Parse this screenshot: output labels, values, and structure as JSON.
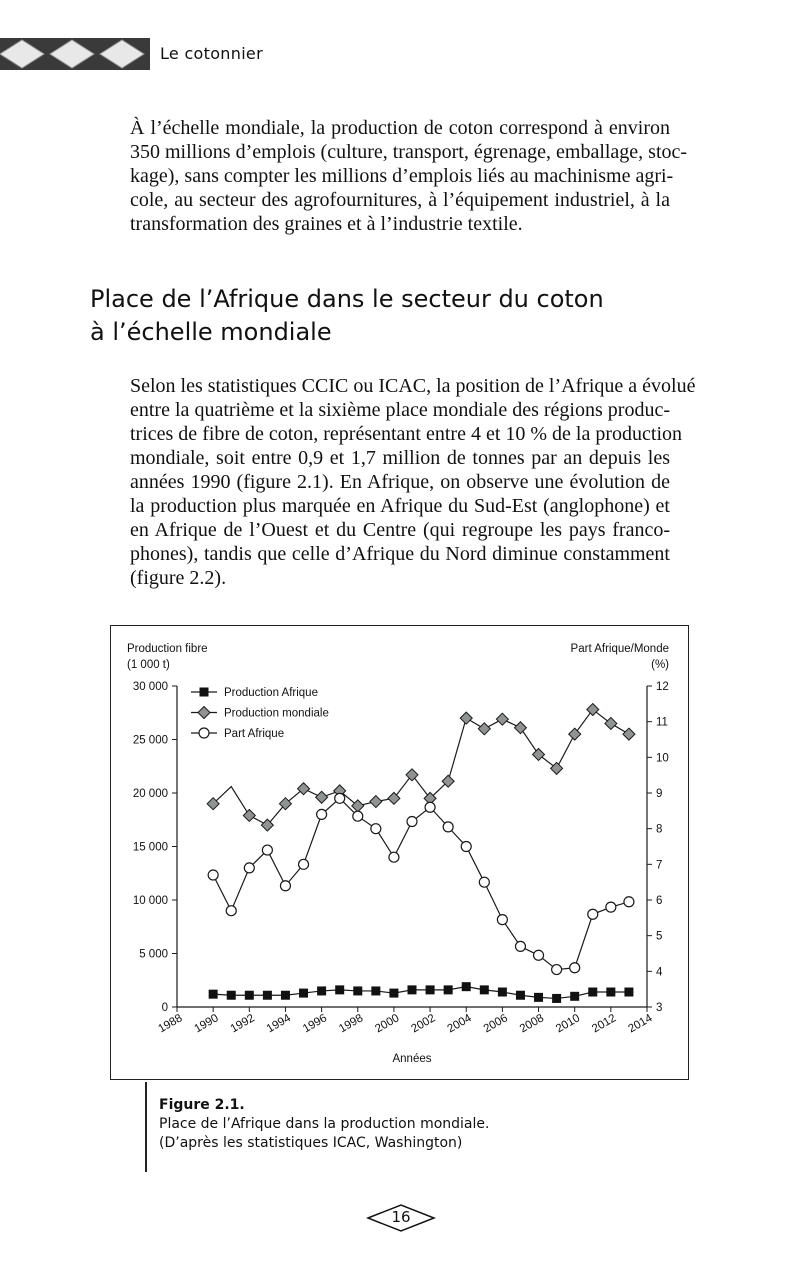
{
  "header": {
    "running_title": "Le cotonnier"
  },
  "paragraph1": [
    "À l’échelle mondiale, la production de coton correspond à environ",
    "350 millions d’emplois (culture, transport, égrenage, emballage, stoc-",
    "kage), sans compter les millions d’emplois liés au machinisme agri-",
    "cole, au secteur des agrofournitures, à l’équipement industriel, à la",
    "transformation des graines et à l’industrie textile."
  ],
  "section_heading": [
    "Place de l’Afrique dans le secteur du coton",
    "à l’échelle mondiale"
  ],
  "paragraph2": [
    "Selon les statistiques CCIC ou ICAC, la position de l’Afrique a évolué",
    "entre la quatrième et la sixième place mondiale des régions produc-",
    "trices de fibre de coton, représentant entre 4 et 10 % de la production",
    "mondiale, soit entre 0,9 et 1,7 million de tonnes par an depuis les",
    "années 1990 (figure 2.1). En Afrique, on observe une évolution de",
    "la production plus marquée en Afrique du Sud-Est (anglophone) et",
    "en Afrique de l’Ouest et du Centre (qui regroupe les pays franco-",
    "phones), tandis que celle d’Afrique du Nord diminue constamment",
    "(figure 2.2)."
  ],
  "chart_data": {
    "type": "line",
    "xlabel": "Années",
    "ylabel_left": [
      "Production fibre",
      "(1 000 t)"
    ],
    "ylabel_right": [
      "Part Afrique/Monde",
      "(%)"
    ],
    "x_ticks": [
      "1988",
      "1990",
      "1992",
      "1994",
      "1996",
      "1998",
      "2000",
      "2002",
      "2004",
      "2006",
      "2008",
      "2010",
      "2012",
      "2014"
    ],
    "xlim": [
      1988,
      2014
    ],
    "y_left_ticks": [
      "0",
      "5 000",
      "10 000",
      "15 000",
      "20 000",
      "25 000",
      "30 000"
    ],
    "ylim_left": [
      0,
      30000
    ],
    "y_right_ticks": [
      "3",
      "4",
      "5",
      "6",
      "7",
      "8",
      "9",
      "10",
      "11",
      "12"
    ],
    "ylim_right": [
      3,
      12
    ],
    "grid": false,
    "legend_placement": "top-left",
    "x": [
      1990,
      1991,
      1992,
      1993,
      1994,
      1995,
      1996,
      1997,
      1998,
      1999,
      2000,
      2001,
      2002,
      2003,
      2004,
      2005,
      2006,
      2007,
      2008,
      2009,
      2010,
      2011,
      2012,
      2013
    ],
    "series": [
      {
        "name": "Production Afrique",
        "axis": "left",
        "marker": "filled-square",
        "values": [
          1200,
          1100,
          1100,
          1100,
          1100,
          1300,
          1500,
          1600,
          1500,
          1500,
          1300,
          1600,
          1600,
          1600,
          1900,
          1600,
          1400,
          1100,
          900,
          800,
          1000,
          1400,
          1400,
          1400
        ]
      },
      {
        "name": "Production mondiale",
        "axis": "left",
        "marker": "gray-diamond",
        "unmarked_years": [
          1991
        ],
        "values": [
          19000,
          20600,
          17900,
          17000,
          19000,
          20400,
          19600,
          20200,
          18800,
          19200,
          19500,
          21700,
          19500,
          21100,
          27000,
          26000,
          26900,
          26100,
          23600,
          22300,
          25500,
          27800,
          26500,
          25500
        ]
      },
      {
        "name": "Part Afrique",
        "axis": "right",
        "marker": "open-circle",
        "values": [
          6.7,
          5.7,
          6.9,
          7.4,
          6.4,
          7.0,
          8.4,
          8.85,
          8.35,
          8.0,
          7.2,
          8.2,
          8.6,
          8.05,
          7.5,
          6.5,
          5.45,
          4.7,
          4.45,
          4.05,
          4.1,
          5.6,
          5.8,
          5.95
        ]
      }
    ],
    "colors": {
      "line": "#1a1a1a",
      "diamond_fill": "#8f9491",
      "square_fill": "#111111",
      "circle_fill": "#ffffff"
    }
  },
  "caption": {
    "label": "Figure 2.1.",
    "line1": "Place de l’Afrique dans la production mondiale.",
    "line2": "(D’après les statistiques ICAC, Washington)"
  },
  "page_number": "16"
}
